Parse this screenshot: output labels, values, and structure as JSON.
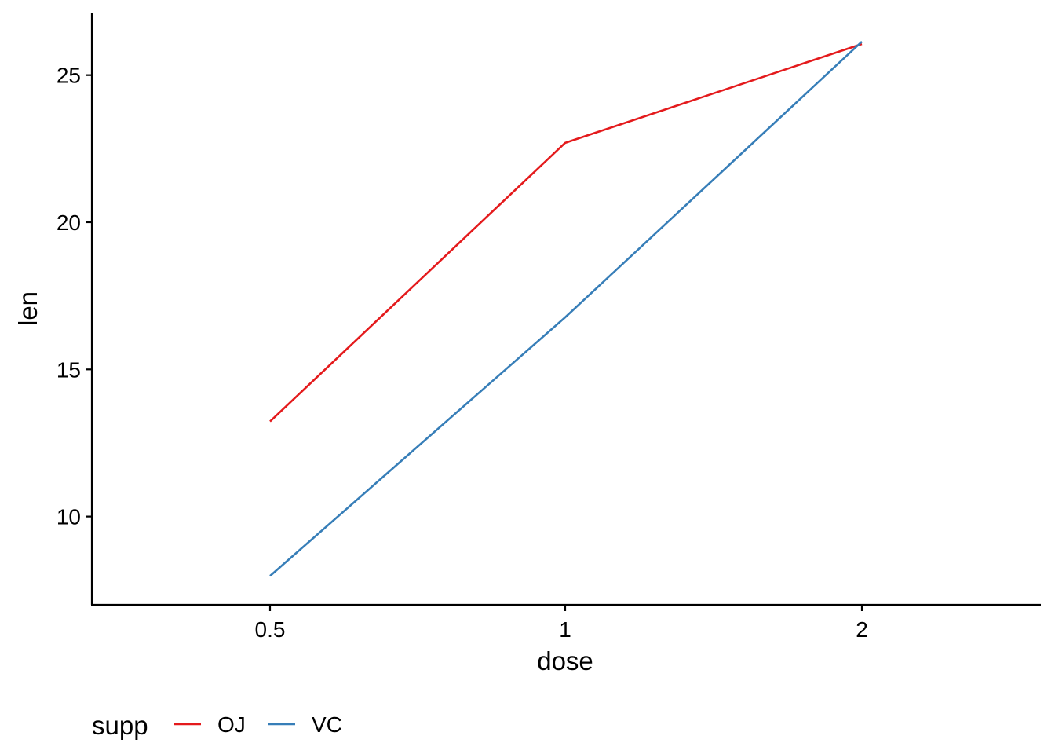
{
  "chart_data": {
    "type": "line",
    "title": "",
    "xlabel": "dose",
    "ylabel": "len",
    "categories": [
      "0.5",
      "1",
      "2"
    ],
    "ylim": [
      7.0,
      27.1
    ],
    "yticks": [
      10,
      15,
      20,
      25
    ],
    "grid": false,
    "legend": {
      "title": "supp",
      "position": "bottom-left"
    },
    "series": [
      {
        "name": "OJ",
        "color": "#E41A1C",
        "values": [
          13.23,
          22.7,
          26.06
        ]
      },
      {
        "name": "VC",
        "color": "#377EB8",
        "values": [
          7.98,
          16.77,
          26.14
        ]
      }
    ]
  }
}
